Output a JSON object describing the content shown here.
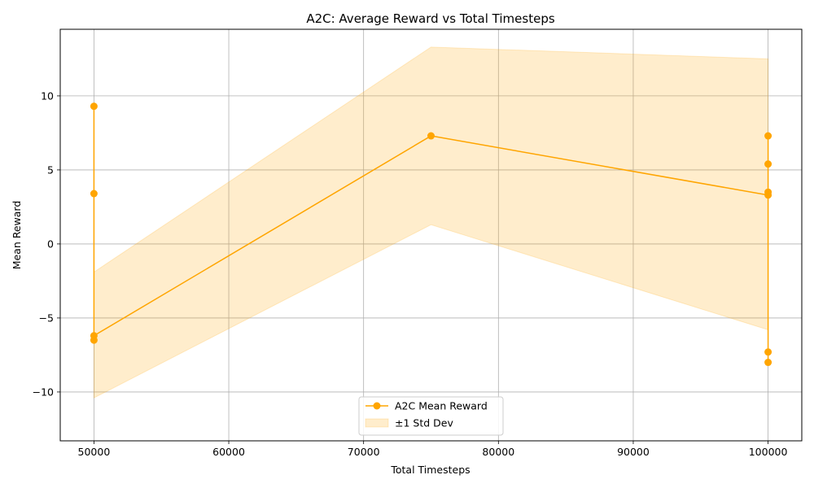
{
  "chart_data": {
    "type": "line",
    "title": "A2C: Average Reward vs Total Timesteps",
    "xlabel": "Total Timesteps",
    "ylabel": "Mean Reward",
    "xlim": [
      47500,
      102500
    ],
    "ylim": [
      -13.3,
      14.5
    ],
    "xticks": [
      50000,
      60000,
      70000,
      80000,
      90000,
      100000
    ],
    "xtick_labels": [
      "50000",
      "60000",
      "70000",
      "80000",
      "90000",
      "100000"
    ],
    "yticks": [
      -10,
      -5,
      0,
      5,
      10
    ],
    "ytick_labels": [
      "−10",
      "−5",
      "0",
      "5",
      "10"
    ],
    "grid": true,
    "legend_position": "bottom-center",
    "colors": {
      "line": "#FFA500",
      "band_fill": "#FFA500"
    },
    "series": [
      {
        "name": "A2C Mean Reward",
        "x": [
          50000,
          50000,
          50000,
          50000,
          75000,
          100000,
          100000,
          100000,
          100000,
          100000,
          100000
        ],
        "y": [
          9.3,
          3.4,
          -6.5,
          -6.2,
          7.3,
          3.3,
          3.5,
          5.4,
          7.3,
          -7.3,
          -8.0
        ]
      }
    ],
    "band": {
      "name": "±1 Std Dev",
      "x": [
        50000,
        75000,
        100000
      ],
      "upper": [
        -1.9,
        13.3,
        12.5
      ],
      "lower": [
        -10.4,
        1.3,
        -5.8
      ]
    }
  }
}
